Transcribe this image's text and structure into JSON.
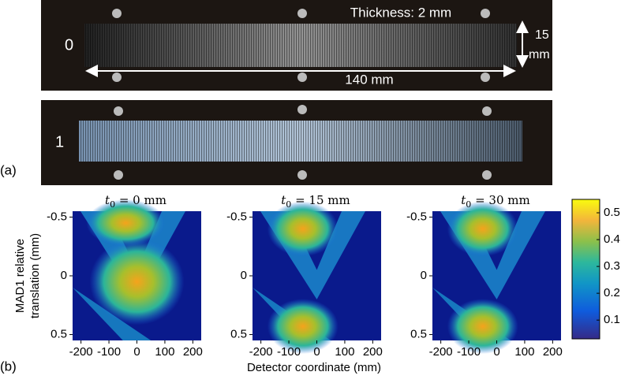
{
  "panel_a": {
    "label": "(a)",
    "photos": [
      {
        "label": "0"
      },
      {
        "label": "1"
      }
    ],
    "thickness": "Thickness: 2 mm",
    "width": "140 mm",
    "height_line1": "15",
    "height_line2": "mm"
  },
  "panel_b": {
    "label": "(b)",
    "plots": [
      {
        "title_var": "t",
        "title_sub": "0",
        "title_rest": " = 0 mm"
      },
      {
        "title_var": "t",
        "title_sub": "0",
        "title_rest": " = 15 mm"
      },
      {
        "title_var": "t",
        "title_sub": "0",
        "title_rest": " = 30 mm"
      }
    ],
    "ylabel_line1": "MAD1 relative",
    "ylabel_line2": "translation (mm)",
    "xlabel": "Detector coordinate (mm)",
    "xlim": [
      -230,
      230
    ],
    "xticks": [
      -200,
      -100,
      0,
      100,
      200
    ],
    "ylim": [
      -0.55,
      0.55
    ],
    "yticks": [
      -0.5,
      0,
      0.5
    ],
    "colorbar": {
      "lim": [
        0.03,
        0.55
      ],
      "ticks": [
        0.1,
        0.2,
        0.3,
        0.4,
        0.5
      ]
    }
  }
}
